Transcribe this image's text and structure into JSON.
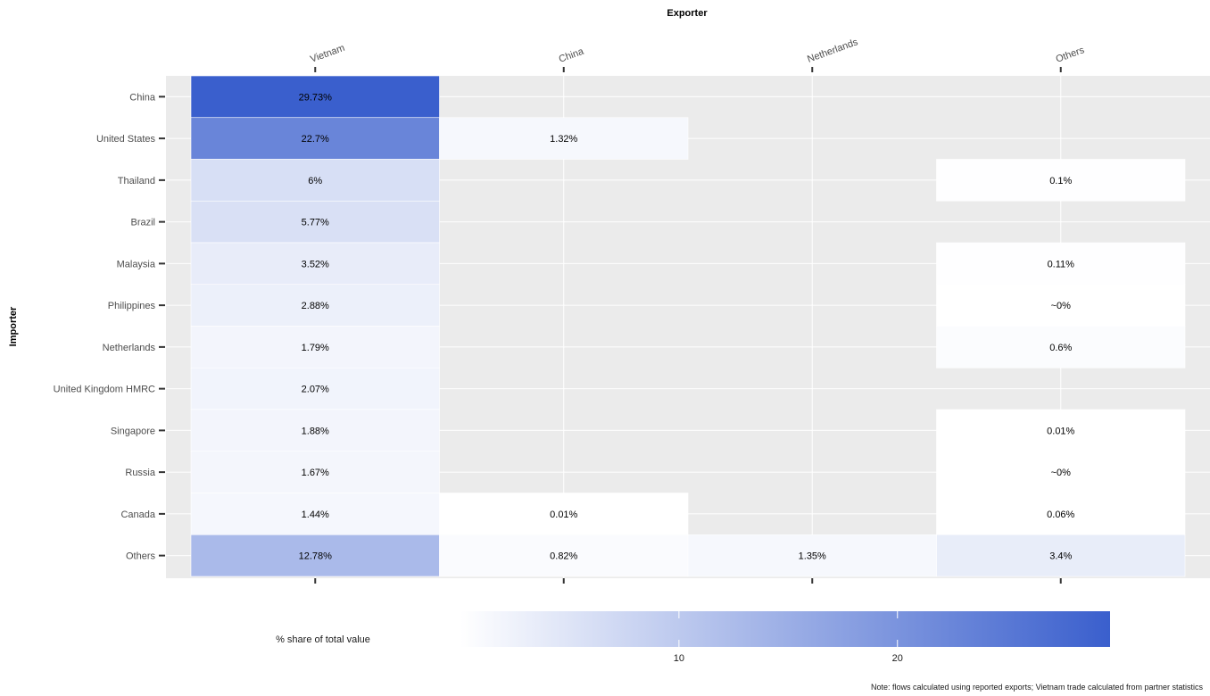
{
  "chart_data": {
    "type": "heatmap",
    "x_title": "Exporter",
    "y_title": "Importer",
    "x_categories": [
      "Vietnam",
      "China",
      "Netherlands",
      "Others"
    ],
    "y_categories": [
      "China",
      "United States",
      "Thailand",
      "Brazil",
      "Malaysia",
      "Philippines",
      "Netherlands",
      "United Kingdom HMRC",
      "Singapore",
      "Russia",
      "Canada",
      "Others"
    ],
    "cells": [
      {
        "importer": "China",
        "exporter": "Vietnam",
        "value": 29.73,
        "label": "29.73%"
      },
      {
        "importer": "United States",
        "exporter": "Vietnam",
        "value": 22.7,
        "label": "22.7%"
      },
      {
        "importer": "United States",
        "exporter": "China",
        "value": 1.32,
        "label": "1.32%"
      },
      {
        "importer": "Thailand",
        "exporter": "Vietnam",
        "value": 6,
        "label": "6%"
      },
      {
        "importer": "Thailand",
        "exporter": "Others",
        "value": 0.1,
        "label": "0.1%"
      },
      {
        "importer": "Brazil",
        "exporter": "Vietnam",
        "value": 5.77,
        "label": "5.77%"
      },
      {
        "importer": "Malaysia",
        "exporter": "Vietnam",
        "value": 3.52,
        "label": "3.52%"
      },
      {
        "importer": "Malaysia",
        "exporter": "Others",
        "value": 0.11,
        "label": "0.11%"
      },
      {
        "importer": "Philippines",
        "exporter": "Vietnam",
        "value": 2.88,
        "label": "2.88%"
      },
      {
        "importer": "Philippines",
        "exporter": "Others",
        "value": 0,
        "label": "~0%"
      },
      {
        "importer": "Netherlands",
        "exporter": "Vietnam",
        "value": 1.79,
        "label": "1.79%"
      },
      {
        "importer": "Netherlands",
        "exporter": "Others",
        "value": 0.6,
        "label": "0.6%"
      },
      {
        "importer": "United Kingdom HMRC",
        "exporter": "Vietnam",
        "value": 2.07,
        "label": "2.07%"
      },
      {
        "importer": "Singapore",
        "exporter": "Vietnam",
        "value": 1.88,
        "label": "1.88%"
      },
      {
        "importer": "Singapore",
        "exporter": "Others",
        "value": 0.01,
        "label": "0.01%"
      },
      {
        "importer": "Russia",
        "exporter": "Vietnam",
        "value": 1.67,
        "label": "1.67%"
      },
      {
        "importer": "Russia",
        "exporter": "Others",
        "value": 0,
        "label": "~0%"
      },
      {
        "importer": "Canada",
        "exporter": "Vietnam",
        "value": 1.44,
        "label": "1.44%"
      },
      {
        "importer": "Canada",
        "exporter": "China",
        "value": 0.01,
        "label": "0.01%"
      },
      {
        "importer": "Canada",
        "exporter": "Others",
        "value": 0.06,
        "label": "0.06%"
      },
      {
        "importer": "Others",
        "exporter": "Vietnam",
        "value": 12.78,
        "label": "12.78%"
      },
      {
        "importer": "Others",
        "exporter": "China",
        "value": 0.82,
        "label": "0.82%"
      },
      {
        "importer": "Others",
        "exporter": "Netherlands",
        "value": 1.35,
        "label": "1.35%"
      },
      {
        "importer": "Others",
        "exporter": "Others",
        "value": 3.4,
        "label": "3.4%"
      }
    ],
    "legend": {
      "title": "% share of total value",
      "ticks": [
        10,
        20
      ],
      "range": [
        0,
        29.73
      ],
      "color_low": "#ffffff",
      "color_high": "#3a5fcd"
    },
    "background_color": "#ebebeb",
    "grid": true,
    "x_axis_position": "top",
    "legend_position": "bottom"
  },
  "note": "Note: flows calculated using reported exports; Vietnam trade calculated from partner statistics"
}
